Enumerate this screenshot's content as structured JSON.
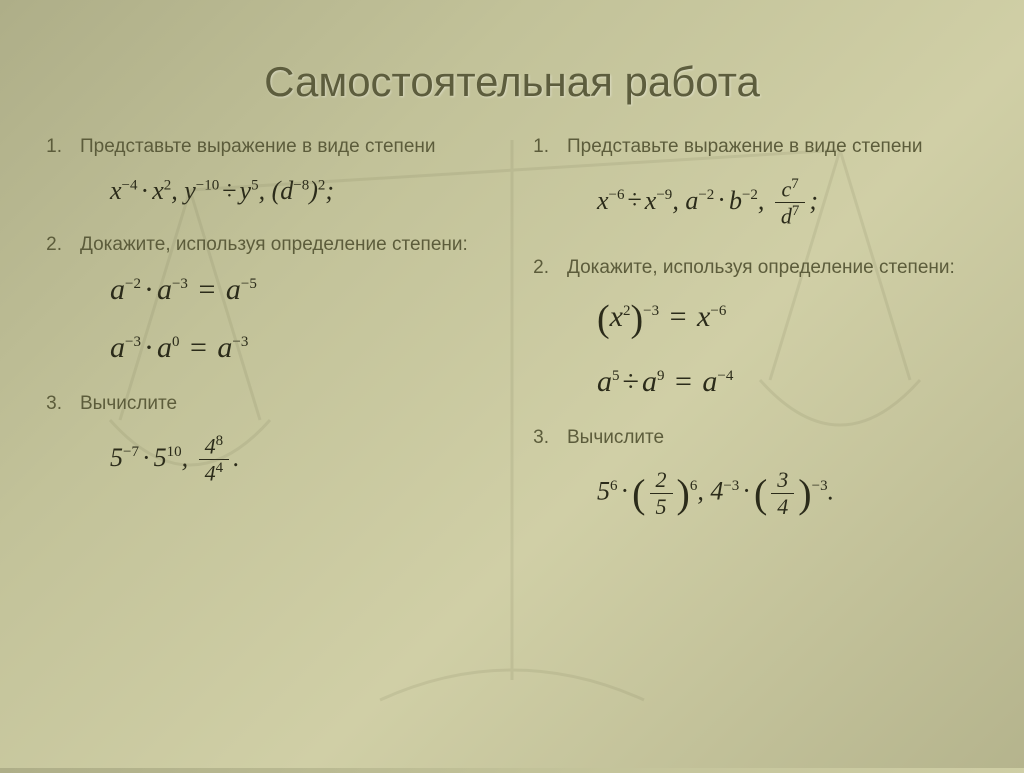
{
  "title": "Самостоятельная работа",
  "colors": {
    "bg_from": "#aeae88",
    "bg_to": "#d0cfa6",
    "heading": "#5d5d3d",
    "body_text": "#5c5c3b",
    "formula_text": "#2b2b1a"
  },
  "typography": {
    "title_fontsize": 42,
    "item_fontsize": 19,
    "formula_fontsize": 26,
    "formula_big_fontsize": 30,
    "body_font": "Arial",
    "formula_font": "Times New Roman"
  },
  "left": {
    "q1_num": "1.",
    "q1_text": "Представьте выражение в виде степени",
    "q1_formula_html": "x<span class='up'>−4</span><span class='op'>·</span>x<span class='up'>2</span>, y<span class='up'>−10</span><span class='op'>÷</span>y<span class='up'>5</span>, (d<span class='up'>−8</span>)<span class='up'>2</span>;",
    "q2_num": "2.",
    "q2_text": "Докажите, используя определение степени:",
    "q2_formula1_html": "a<span class='up'>−2</span><span class='op'>·</span>a<span class='up'>−3</span><span class='op'> = </span>a<span class='up'>−5</span>",
    "q2_formula2_html": "a<span class='up'>−3</span><span class='op'>·</span>a<span class='up'>0</span><span class='op'> = </span>a<span class='up'>−3</span>",
    "q3_num": "3.",
    "q3_text": "Вычислите",
    "q3_formula_html": "5<span class='up'>−7</span><span class='op'>·</span>5<span class='up'>10</span>, <span class='frac'><span class='fn'>4<span class='up'>8</span></span><span class='fd'>4<span class='up'>4</span></span></span>."
  },
  "right": {
    "q1_num": "1.",
    "q1_text": "Представьте выражение в виде степени",
    "q1_formula_html": "x<span class='up'>−6</span><span class='op'>÷</span>x<span class='up'>−9</span>, a<span class='up'>−2</span><span class='op'>·</span>b<span class='up'>−2</span>, <span class='frac'><span class='fn'>c<span class='up'>7</span></span><span class='fd'>d<span class='up'>7</span></span></span>;",
    "q2_num": "2.",
    "q2_text": "Докажите, используя определение степени:",
    "q2_formula1_html": "<span class='paren' style='font-size:38px'>(</span>x<span class='up'>2</span><span class='paren' style='font-size:38px'>)</span><span class='up'>−3</span><span class='op'> = </span>x<span class='up'>−6</span>",
    "q2_formula2_html": "a<span class='up'>5</span><span class='op'>÷</span>a<span class='up'>9</span><span class='op'> = </span>a<span class='up'>−4</span>",
    "q3_num": "3.",
    "q3_text": "Вычислите",
    "q3_formula_html": "5<span class='up'>6</span><span class='op'>·</span><span class='paren' style='font-size:40px'>(</span><span class='frac'><span class='fn'>2</span><span class='fd'>5</span></span><span class='paren' style='font-size:40px'>)</span><span class='up'>6</span>, 4<span class='up'>−3</span><span class='op'>·</span><span class='paren' style='font-size:40px'>(</span><span class='frac'><span class='fn'>3</span><span class='fd'>4</span></span><span class='paren' style='font-size:40px'>)</span><span class='up'>−3</span>."
  }
}
